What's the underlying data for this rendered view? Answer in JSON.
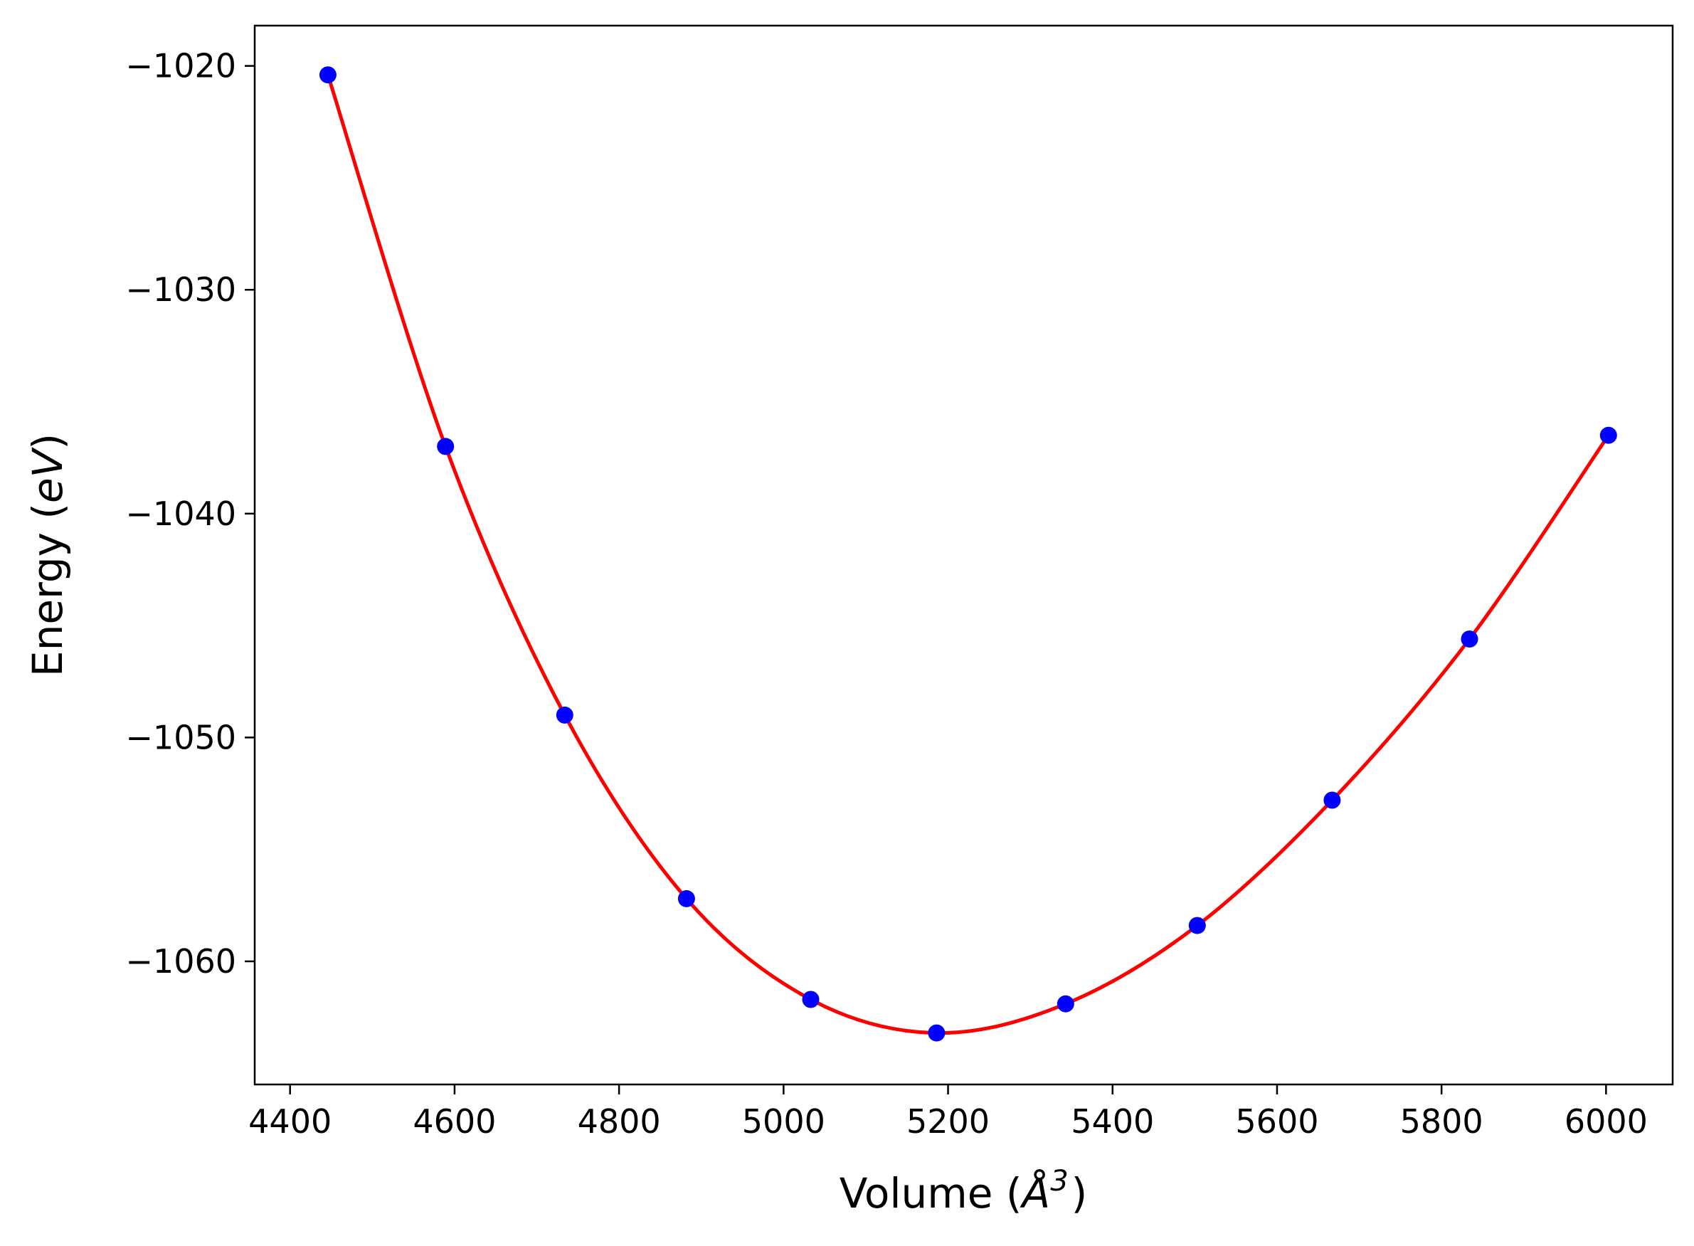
{
  "chart_data": {
    "type": "scatter",
    "title": "",
    "xlabel": {
      "prefix": "Volume (",
      "unit_symbol": "Å",
      "unit_power": "3",
      "suffix": ")"
    },
    "ylabel": {
      "prefix": "Energy (",
      "unit": "eV",
      "suffix": ")"
    },
    "xlim": [
      4357,
      6081
    ],
    "ylim": [
      -1065.5,
      -1018.2
    ],
    "grid": false,
    "legend": "none",
    "xticks": [
      4400,
      4600,
      4800,
      5000,
      5200,
      5400,
      5600,
      5800,
      6000
    ],
    "yticks": [
      -1020,
      -1030,
      -1040,
      -1050,
      -1060
    ],
    "series": [
      {
        "style": "markers",
        "color": "#0000ff",
        "points": [
          {
            "x": 4446,
            "y": -1020.4
          },
          {
            "x": 4589,
            "y": -1037.0
          },
          {
            "x": 4734,
            "y": -1049.0
          },
          {
            "x": 4882,
            "y": -1057.2
          },
          {
            "x": 5033,
            "y": -1061.7
          },
          {
            "x": 5186,
            "y": -1063.2
          },
          {
            "x": 5343,
            "y": -1061.9
          },
          {
            "x": 5503,
            "y": -1058.4
          },
          {
            "x": 5667,
            "y": -1052.8
          },
          {
            "x": 5834,
            "y": -1045.6
          },
          {
            "x": 6003,
            "y": -1036.5
          }
        ]
      },
      {
        "style": "line",
        "color": "#ff0000",
        "fit": "smooth curve through data points"
      }
    ]
  }
}
